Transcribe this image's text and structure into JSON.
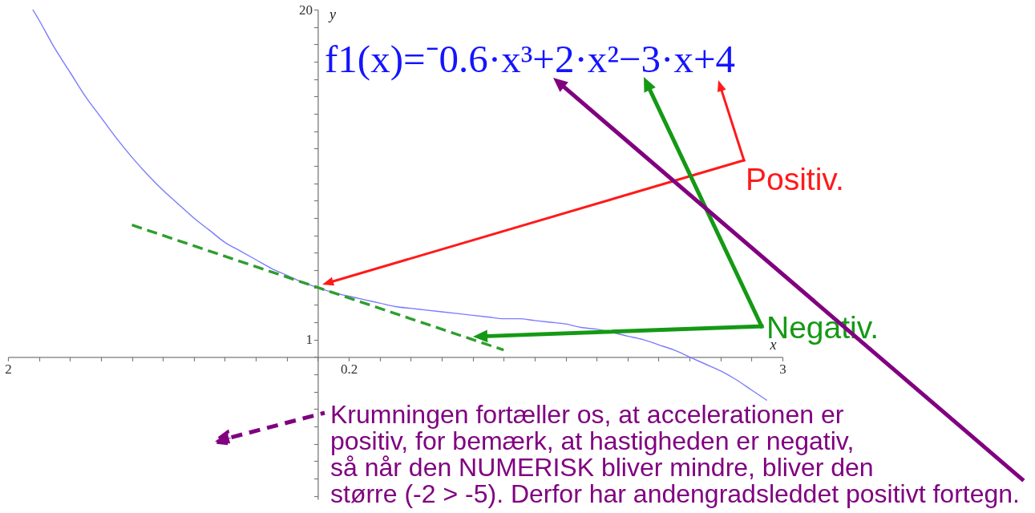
{
  "chart_data": {
    "type": "line",
    "xlabel": "x",
    "ylabel": "y",
    "xlim": [
      -2,
      3
    ],
    "ylim": [
      -8.2,
      20
    ],
    "xticks": [
      {
        "value": -2,
        "label": "2"
      },
      {
        "value": -1.8,
        "label": null
      },
      {
        "value": -1.6,
        "label": null
      },
      {
        "value": -1.4,
        "label": null
      },
      {
        "value": -1.2,
        "label": null
      },
      {
        "value": -1,
        "label": null
      },
      {
        "value": -0.8,
        "label": null
      },
      {
        "value": -0.6,
        "label": null
      },
      {
        "value": -0.4,
        "label": null
      },
      {
        "value": -0.2,
        "label": null
      },
      {
        "value": 0,
        "label": null
      },
      0.2,
      {
        "value": 0.4,
        "label": null
      },
      {
        "value": 0.6,
        "label": null
      },
      {
        "value": 0.8,
        "label": null
      },
      {
        "value": 1,
        "label": null
      },
      {
        "value": 1.2,
        "label": null
      },
      {
        "value": 1.4,
        "label": null
      },
      {
        "value": 1.6,
        "label": null
      },
      {
        "value": 1.8,
        "label": null
      },
      {
        "value": 2,
        "label": null
      },
      {
        "value": 2.2,
        "label": null
      },
      {
        "value": 2.4,
        "label": null
      },
      {
        "value": 2.6,
        "label": null
      },
      {
        "value": 2.8,
        "label": null
      },
      3
    ],
    "yticks": [
      {
        "value": -8,
        "label": null
      },
      {
        "value": -7,
        "label": null
      },
      {
        "value": -6,
        "label": null
      },
      {
        "value": -5,
        "label": null
      },
      {
        "value": -4,
        "label": null
      },
      {
        "value": -3,
        "label": null
      },
      {
        "value": -2,
        "label": null
      },
      {
        "value": -1,
        "label": null
      },
      {
        "value": 0,
        "label": null
      },
      1,
      {
        "value": 2,
        "label": null
      },
      {
        "value": 3,
        "label": null
      },
      {
        "value": 4,
        "label": null
      },
      {
        "value": 5,
        "label": null
      },
      {
        "value": 6,
        "label": null
      },
      {
        "value": 7,
        "label": null
      },
      {
        "value": 8,
        "label": null
      },
      {
        "value": 9,
        "label": null
      },
      {
        "value": 10,
        "label": null
      },
      {
        "value": 11,
        "label": null
      },
      {
        "value": 12,
        "label": null
      },
      {
        "value": 13,
        "label": null
      },
      {
        "value": 14,
        "label": null
      },
      {
        "value": 15,
        "label": null
      },
      {
        "value": 16,
        "label": null
      },
      {
        "value": 17,
        "label": null
      },
      {
        "value": 18,
        "label": null
      },
      {
        "value": 19,
        "label": null
      },
      20
    ],
    "series": [
      {
        "color": "#7b7bff",
        "x": [
          -1.84,
          -1.8,
          -1.7,
          -1.6,
          -1.5,
          -1.4,
          -1.3,
          -1.2,
          -1.1,
          -1,
          -0.9,
          -0.8,
          -0.7,
          -0.6,
          -0.5,
          -0.4,
          -0.3,
          -0.2,
          -0.1,
          0,
          0.1,
          0.2,
          0.3,
          0.4,
          0.5,
          0.6,
          0.7,
          0.8,
          0.9,
          1,
          1.1,
          1.2,
          1.3,
          1.4,
          1.5,
          1.6,
          1.7,
          1.8,
          2,
          2.1,
          2.2,
          2.3,
          2.4,
          2.5,
          2.6,
          2.7,
          2.8,
          2.9
        ],
        "values": [
          20,
          19.4,
          17.8,
          16.4,
          15,
          13.8,
          12.6,
          11.5,
          10.5,
          9.6,
          8.8,
          8,
          7.3,
          6.6,
          6.1,
          5.6,
          5.1,
          4.7,
          4.3,
          4,
          3.7,
          3.5,
          3.3,
          3.1,
          2.9,
          2.8,
          2.7,
          2.6,
          2.5,
          2.4,
          2.3,
          2.2,
          2.2,
          2.1,
          2,
          1.9,
          1.7,
          1.6,
          1.2,
          1,
          0.7,
          0.4,
          0,
          -0.4,
          -0.8,
          -1.3,
          -1.9,
          -2.5
        ]
      },
      {
        "color": "#2e9e2e",
        "line_style": "dashed",
        "x": [
          -1.2,
          1.2
        ],
        "values": [
          7.6,
          0.4
        ]
      }
    ],
    "annotations": [
      "f1(x)=⁻0.6·x³+2·x²−3·x+4",
      "Positiv.",
      "Negativ.",
      "Krumningen fortæller os, at accelerationen er\npositiv, for bemærk, at hastigheden er negativ,\nså når den NUMERISK bliver mindre, bliver den\nstørre (-2 > -5). Derfor har andengradsleddet positivt fortegn."
    ]
  }
}
